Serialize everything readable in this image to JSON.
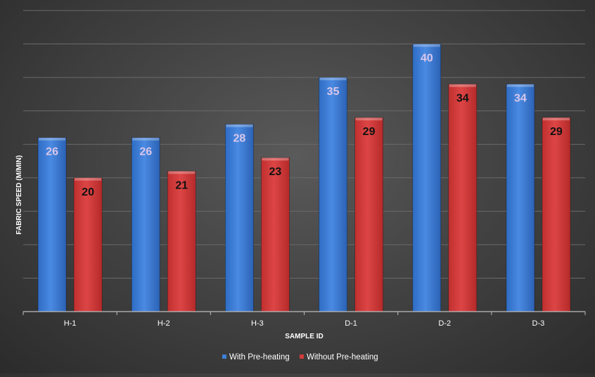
{
  "chart_data": {
    "type": "bar",
    "title": "",
    "xlabel": "SAMPLE ID",
    "ylabel": "FABRIC SPEED (M/MIN)",
    "categories": [
      "H-1",
      "H-2",
      "H-3",
      "D-1",
      "D-2",
      "D-3"
    ],
    "series": [
      {
        "name": "With Pre-heating",
        "color": "#3e7fd6",
        "label_color": "#d9c6ea",
        "values": [
          26,
          26,
          28,
          35,
          40,
          34
        ]
      },
      {
        "name": "Without Pre-heating",
        "color": "#d23a3a",
        "label_color": "#111111",
        "values": [
          20,
          21,
          23,
          29,
          34,
          29
        ]
      }
    ],
    "ylim": [
      0,
      45
    ],
    "y_gridlines": [
      5,
      10,
      15,
      20,
      25,
      30,
      35,
      40,
      45
    ],
    "y_tick_labels_visible": false,
    "grid": true,
    "data_labels": true,
    "legend": "bottom-center"
  }
}
